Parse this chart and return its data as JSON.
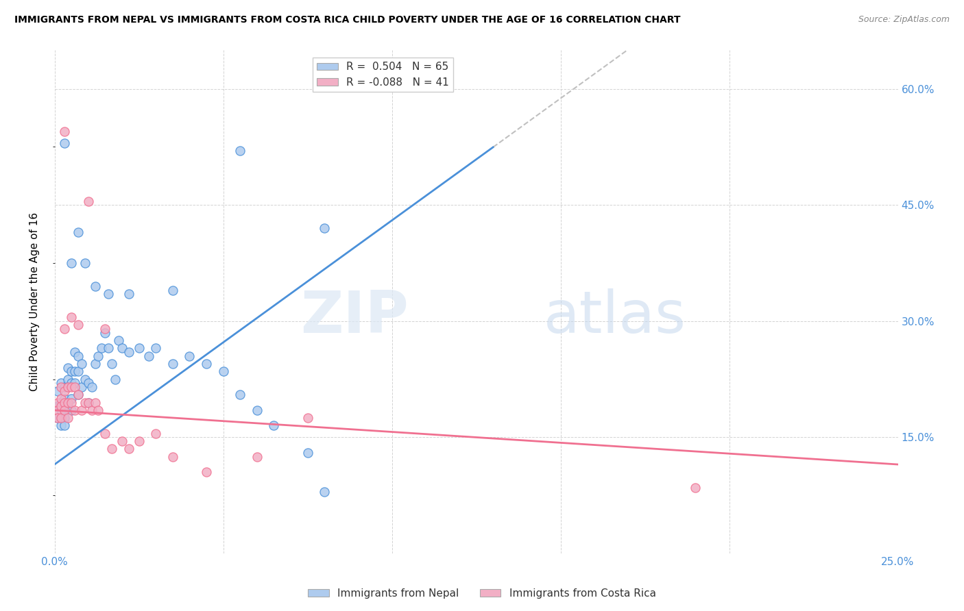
{
  "title": "IMMIGRANTS FROM NEPAL VS IMMIGRANTS FROM COSTA RICA CHILD POVERTY UNDER THE AGE OF 16 CORRELATION CHART",
  "source": "Source: ZipAtlas.com",
  "ylabel": "Child Poverty Under the Age of 16",
  "xlim": [
    0.0,
    0.25
  ],
  "ylim": [
    0.0,
    0.65
  ],
  "nepal_R": 0.504,
  "nepal_N": 65,
  "costarica_R": -0.088,
  "costarica_N": 41,
  "nepal_color": "#aecbee",
  "costarica_color": "#f2afc5",
  "nepal_line_color": "#4a90d9",
  "costarica_line_color": "#f07090",
  "diagonal_color": "#c0c0c0",
  "watermark_zip": "ZIP",
  "watermark_atlas": "atlas",
  "legend_label_nepal": "Immigrants from Nepal",
  "legend_label_costarica": "Immigrants from Costa Rica",
  "nepal_slope": 3.15,
  "nepal_intercept": 0.115,
  "cr_slope": -0.28,
  "cr_intercept": 0.185,
  "nepal_x": [
    0.001,
    0.001,
    0.001,
    0.002,
    0.002,
    0.002,
    0.002,
    0.002,
    0.003,
    0.003,
    0.003,
    0.003,
    0.003,
    0.004,
    0.004,
    0.004,
    0.004,
    0.005,
    0.005,
    0.005,
    0.005,
    0.006,
    0.006,
    0.006,
    0.007,
    0.007,
    0.007,
    0.008,
    0.008,
    0.009,
    0.01,
    0.01,
    0.011,
    0.012,
    0.013,
    0.014,
    0.015,
    0.016,
    0.017,
    0.018,
    0.019,
    0.02,
    0.022,
    0.025,
    0.028,
    0.03,
    0.035,
    0.04,
    0.045,
    0.05,
    0.055,
    0.06,
    0.065,
    0.075,
    0.08,
    0.003,
    0.005,
    0.007,
    0.009,
    0.012,
    0.016,
    0.022,
    0.035,
    0.055,
    0.08
  ],
  "nepal_y": [
    0.175,
    0.21,
    0.19,
    0.22,
    0.195,
    0.185,
    0.175,
    0.165,
    0.215,
    0.2,
    0.185,
    0.175,
    0.165,
    0.24,
    0.225,
    0.215,
    0.19,
    0.235,
    0.22,
    0.2,
    0.185,
    0.26,
    0.235,
    0.22,
    0.255,
    0.235,
    0.205,
    0.245,
    0.215,
    0.225,
    0.22,
    0.195,
    0.215,
    0.245,
    0.255,
    0.265,
    0.285,
    0.265,
    0.245,
    0.225,
    0.275,
    0.265,
    0.26,
    0.265,
    0.255,
    0.265,
    0.245,
    0.255,
    0.245,
    0.235,
    0.205,
    0.185,
    0.165,
    0.13,
    0.08,
    0.53,
    0.375,
    0.415,
    0.375,
    0.345,
    0.335,
    0.335,
    0.34,
    0.52,
    0.42
  ],
  "costarica_x": [
    0.001,
    0.001,
    0.001,
    0.002,
    0.002,
    0.002,
    0.002,
    0.003,
    0.003,
    0.003,
    0.003,
    0.004,
    0.004,
    0.004,
    0.005,
    0.005,
    0.006,
    0.006,
    0.007,
    0.008,
    0.009,
    0.01,
    0.011,
    0.012,
    0.013,
    0.015,
    0.017,
    0.02,
    0.022,
    0.025,
    0.03,
    0.035,
    0.045,
    0.06,
    0.075,
    0.003,
    0.005,
    0.007,
    0.01,
    0.015,
    0.19
  ],
  "costarica_y": [
    0.195,
    0.185,
    0.175,
    0.215,
    0.2,
    0.19,
    0.175,
    0.21,
    0.195,
    0.185,
    0.545,
    0.215,
    0.195,
    0.175,
    0.215,
    0.195,
    0.215,
    0.185,
    0.205,
    0.185,
    0.195,
    0.195,
    0.185,
    0.195,
    0.185,
    0.155,
    0.135,
    0.145,
    0.135,
    0.145,
    0.155,
    0.125,
    0.105,
    0.125,
    0.175,
    0.29,
    0.305,
    0.295,
    0.455,
    0.29,
    0.085
  ]
}
